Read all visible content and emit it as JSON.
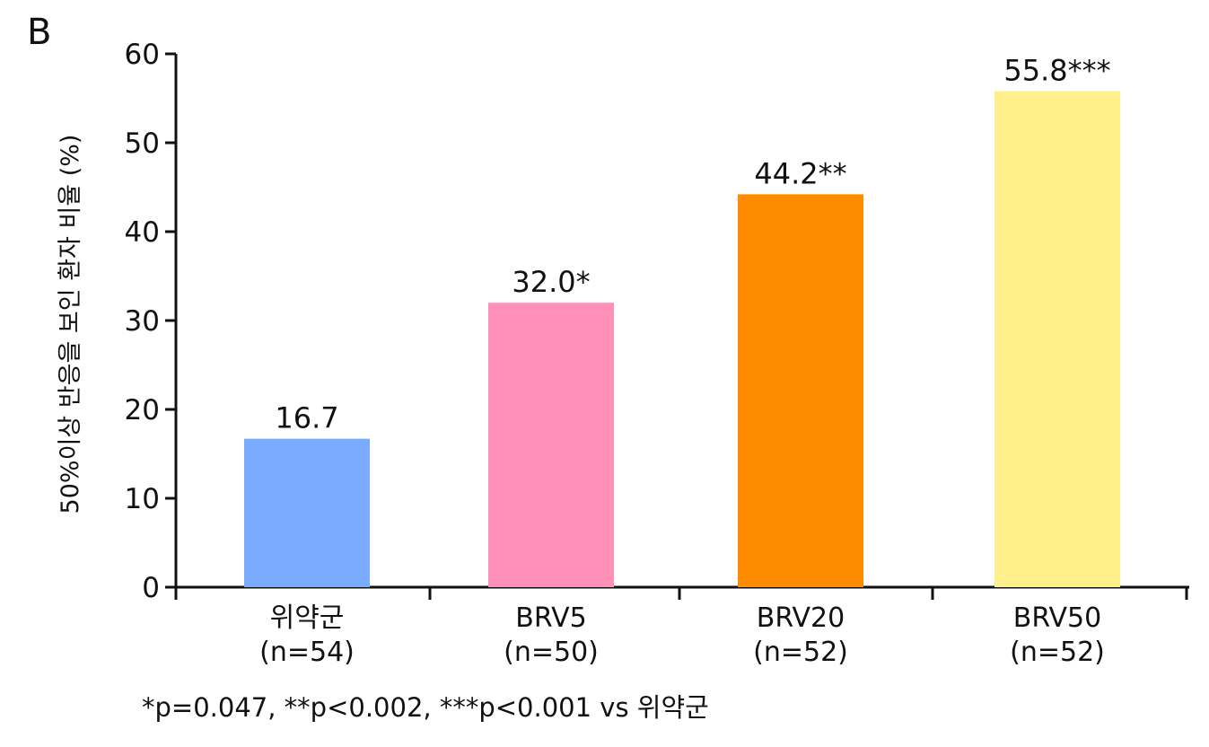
{
  "panel_label": "B",
  "footnote": "*p=0.047, **p<0.002, ***p<0.001 vs 위약군",
  "chart_data": {
    "type": "bar",
    "title": "",
    "xlabel": "",
    "ylabel": "50%이상 반응을 보인 환자 비율 (%)",
    "ylim": [
      0,
      60
    ],
    "y_ticks": [
      0,
      10,
      20,
      30,
      40,
      50,
      60
    ],
    "grid": false,
    "categories": [
      "위약군",
      "BRV5",
      "BRV20",
      "BRV50"
    ],
    "category_sublabels": [
      "(n=54)",
      "(n=50)",
      "(n=52)",
      "(n=52)"
    ],
    "values": [
      16.7,
      32.0,
      44.2,
      55.8
    ],
    "data_labels": [
      "16.7",
      "32.0*",
      "44.2**",
      "55.8***"
    ],
    "colors": [
      "#7aabff",
      "#ff90b8",
      "#ff8c00",
      "#fff08c"
    ]
  }
}
